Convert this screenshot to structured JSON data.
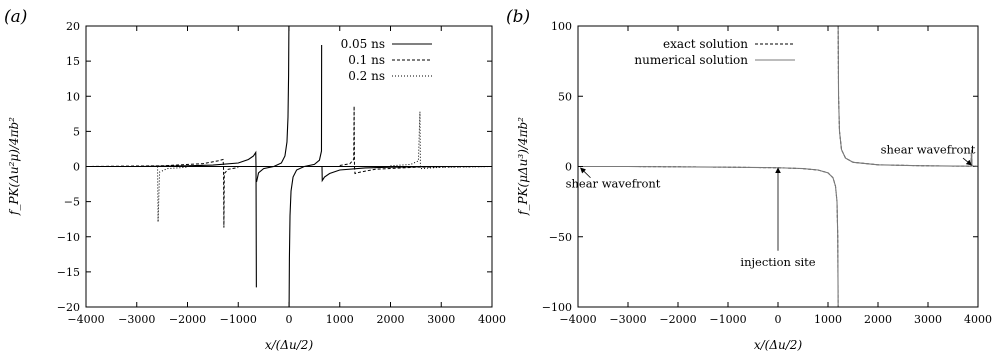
{
  "chart_data": [
    {
      "type": "line",
      "panel_label": "(a)",
      "xlabel": "x/(Δu/2)",
      "ylabel": "f_PK(Δu²μ)/4πb²",
      "xlim": [
        -4000,
        4000
      ],
      "ylim": [
        -20,
        20
      ],
      "xticks": [
        -4000,
        -3000,
        -2000,
        -1000,
        0,
        1000,
        2000,
        3000,
        4000
      ],
      "yticks": [
        -20,
        -15,
        -10,
        -5,
        0,
        5,
        10,
        15,
        20
      ],
      "legend_position": "top-right",
      "reference_line_y": 0,
      "series": [
        {
          "name": "0.05 ns",
          "style": "solid",
          "color": "#000000",
          "segments": [
            [
              [
                -4000,
                0
              ],
              [
                -3000,
                0.0
              ],
              [
                -2000,
                0.1
              ],
              [
                -1500,
                0.2
              ],
              [
                -1000,
                0.5
              ],
              [
                -800,
                1.0
              ],
              [
                -700,
                1.5
              ],
              [
                -655,
                2.0
              ],
              [
                -650,
                0.0
              ],
              [
                -643,
                -17.2
              ]
            ],
            [
              [
                -640,
                -2.2
              ],
              [
                -600,
                -0.9
              ],
              [
                -500,
                -0.3
              ],
              [
                -300,
                0.0
              ],
              [
                -150,
                0.5
              ],
              [
                -80,
                1.5
              ],
              [
                -40,
                3.5
              ],
              [
                -20,
                7.0
              ],
              [
                -8,
                13.0
              ],
              [
                -2,
                20.0
              ]
            ],
            [
              [
                2,
                -20.0
              ],
              [
                8,
                -13.0
              ],
              [
                20,
                -7.0
              ],
              [
                40,
                -3.5
              ],
              [
                80,
                -1.5
              ],
              [
                150,
                -0.5
              ],
              [
                300,
                0.0
              ],
              [
                500,
                0.3
              ],
              [
                600,
                0.9
              ],
              [
                640,
                2.2
              ],
              [
                643,
                17.3
              ]
            ],
            [
              [
                650,
                0.0
              ],
              [
                655,
                -2.0
              ],
              [
                700,
                -1.5
              ],
              [
                800,
                -1.0
              ],
              [
                1000,
                -0.5
              ],
              [
                1500,
                -0.2
              ],
              [
                2000,
                -0.1
              ],
              [
                3000,
                0.0
              ],
              [
                4000,
                0
              ]
            ]
          ]
        },
        {
          "name": "0.1 ns",
          "style": "dashed",
          "color": "#000000",
          "segments": [
            [
              [
                -4000,
                0
              ],
              [
                -2500,
                0.1
              ],
              [
                -1700,
                0.4
              ],
              [
                -1400,
                0.8
              ],
              [
                -1300,
                1.0
              ],
              [
                -1290,
                0.0
              ],
              [
                -1283,
                -8.7
              ],
              [
                -1275,
                -1.0
              ],
              [
                -1200,
                -0.4
              ],
              [
                -1000,
                -0.15
              ]
            ],
            [
              [
                1000,
                0.15
              ],
              [
                1200,
                0.4
              ],
              [
                1275,
                1.0
              ],
              [
                1283,
                8.6
              ],
              [
                1290,
                0.0
              ],
              [
                1300,
                -1.0
              ],
              [
                1400,
                -0.8
              ],
              [
                1700,
                -0.4
              ],
              [
                2500,
                -0.1
              ],
              [
                4000,
                0
              ]
            ]
          ]
        },
        {
          "name": "0.2 ns",
          "style": "dotted",
          "color": "#000000",
          "segments": [
            [
              [
                -2590,
                0.0
              ],
              [
                -2580,
                -7.9
              ],
              [
                -2550,
                -0.8
              ],
              [
                -2400,
                -0.3
              ],
              [
                -2000,
                -0.1
              ]
            ],
            [
              [
                2000,
                0.1
              ],
              [
                2400,
                0.3
              ],
              [
                2550,
                0.8
              ],
              [
                2580,
                7.8
              ],
              [
                2590,
                0.0
              ],
              [
                2600,
                -0.3
              ],
              [
                3000,
                -0.1
              ],
              [
                4000,
                0
              ]
            ]
          ]
        }
      ]
    },
    {
      "type": "line",
      "panel_label": "(b)",
      "xlabel": "x/(Δu/2)",
      "ylabel": "f_PK(μΔu³)/4πb²",
      "xlim": [
        -4000,
        4000
      ],
      "ylim": [
        -100,
        100
      ],
      "xticks": [
        -4000,
        -3000,
        -2000,
        -1000,
        0,
        1000,
        2000,
        3000,
        4000
      ],
      "yticks": [
        -100,
        -50,
        0,
        50,
        100
      ],
      "legend_position": "top-left",
      "series": [
        {
          "name": "exact solution",
          "style": "dashed",
          "color": "#000000",
          "segments": [
            [
              [
                -3900,
                0.0
              ],
              [
                -3000,
                0.0
              ],
              [
                -2000,
                -0.2
              ],
              [
                -1000,
                -0.5
              ],
              [
                0,
                -0.9
              ],
              [
                500,
                -1.5
              ],
              [
                800,
                -2.5
              ],
              [
                1000,
                -4.5
              ],
              [
                1100,
                -8.0
              ],
              [
                1150,
                -14.0
              ],
              [
                1180,
                -25.0
              ],
              [
                1195,
                -50.0
              ],
              [
                1203,
                -100.0
              ]
            ],
            [
              [
                1203,
                100.0
              ],
              [
                1211,
                50.0
              ],
              [
                1230,
                25.0
              ],
              [
                1270,
                12.0
              ],
              [
                1350,
                6.0
              ],
              [
                1500,
                3.0
              ],
              [
                2000,
                1.2
              ],
              [
                2800,
                0.6
              ],
              [
                3500,
                0.3
              ],
              [
                3860,
                0.2
              ],
              [
                3870,
                10.0
              ],
              [
                3880,
                0.5
              ],
              [
                4000,
                0.0
              ]
            ]
          ]
        },
        {
          "name": "numerical solution",
          "style": "solid",
          "color": "#7a7a7a",
          "segments": [
            [
              [
                -3900,
                0.0
              ],
              [
                -3000,
                0.0
              ],
              [
                -2000,
                -0.2
              ],
              [
                -1000,
                -0.5
              ],
              [
                0,
                -0.9
              ],
              [
                500,
                -1.5
              ],
              [
                800,
                -2.5
              ],
              [
                1000,
                -4.5
              ],
              [
                1100,
                -8.0
              ],
              [
                1150,
                -14.0
              ],
              [
                1180,
                -25.0
              ],
              [
                1195,
                -50.0
              ],
              [
                1203,
                -100.0
              ]
            ],
            [
              [
                1203,
                100.0
              ],
              [
                1211,
                50.0
              ],
              [
                1230,
                25.0
              ],
              [
                1270,
                12.0
              ],
              [
                1350,
                6.0
              ],
              [
                1500,
                3.0
              ],
              [
                2000,
                1.2
              ],
              [
                2800,
                0.6
              ],
              [
                3500,
                0.3
              ],
              [
                3860,
                0.2
              ],
              [
                3872,
                12.0
              ],
              [
                3880,
                0.5
              ],
              [
                4000,
                0.0
              ]
            ]
          ]
        }
      ],
      "annotations": [
        {
          "text": "shear wavefront",
          "text_at": [
            -3300,
            -12
          ],
          "arrow_from": [
            -3750,
            -8
          ],
          "arrow_to": [
            -3950,
            -1
          ]
        },
        {
          "text": "injection site",
          "text_at": [
            0,
            -68
          ],
          "arrow_from": [
            0,
            -60
          ],
          "arrow_to": [
            0,
            -1
          ]
        },
        {
          "text": "shear wavefront",
          "text_at": [
            3000,
            12
          ],
          "arrow_from": [
            3700,
            6
          ],
          "arrow_to": [
            3870,
            1
          ]
        }
      ]
    }
  ]
}
